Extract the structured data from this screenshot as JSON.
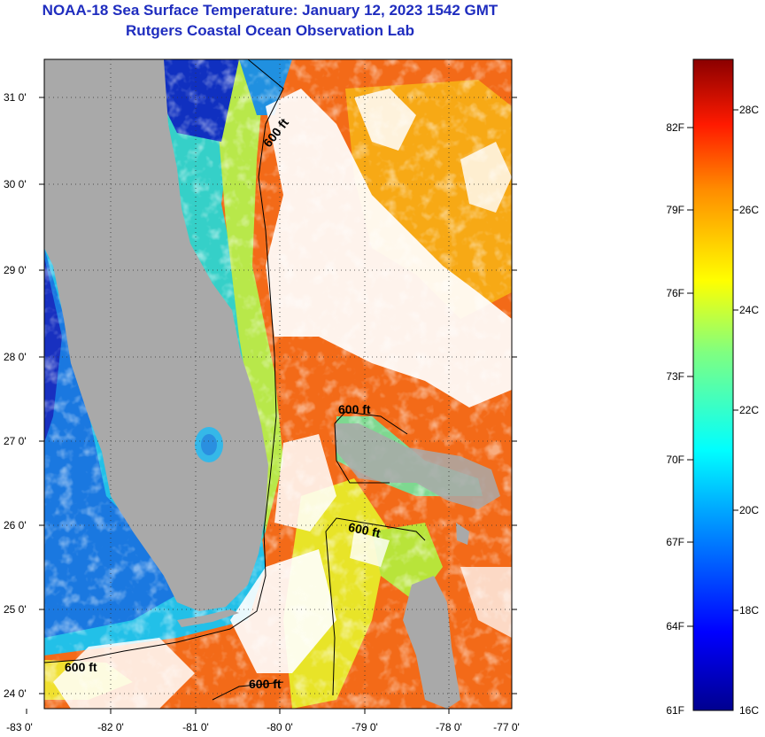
{
  "title": "NOAA-18 Sea Surface Temperature:  January 12, 2023 1542 GMT",
  "subtitle": "Rutgers Coastal Ocean Observation Lab",
  "lat_labels": [
    "31 0'",
    "30 0'",
    "29 0'",
    "28 0'",
    "27 0'",
    "26 0'",
    "25 0'",
    "24 0'"
  ],
  "lon_labels": [
    "-83 0'",
    "-82 0'",
    "-81 0'",
    "-80 0'",
    "-79 0'",
    "-78 0'",
    "-77 0'"
  ],
  "contour_label": "600 ft",
  "colorbar": {
    "fahrenheit_labels": [
      "82F",
      "79F",
      "76F",
      "73F",
      "70F",
      "67F",
      "64F",
      "61F"
    ],
    "celsius_labels": [
      "28C",
      "26C",
      "24C",
      "22C",
      "20C",
      "18C",
      "16C"
    ]
  },
  "colors": {
    "title": "#1f2dbf",
    "land": "#a9a9a9",
    "clouds": "#ffffff",
    "warm": "#f05a12",
    "cool": "#19c8e0",
    "cold": "#1428c8"
  }
}
